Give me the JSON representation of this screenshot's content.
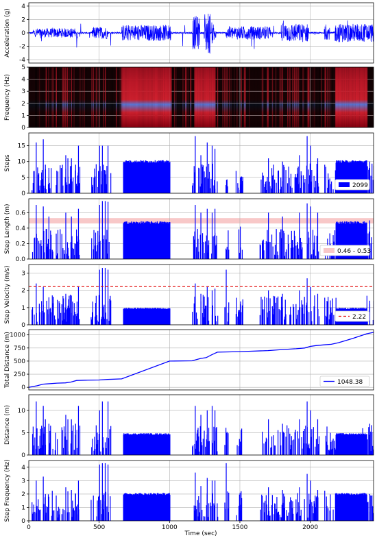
{
  "colors": {
    "series": "#0000ff",
    "band": "#f8c8c8",
    "reference": "#e00000",
    "spectrogram_bg": "#000000",
    "grid": "#b0b0b0"
  },
  "x_axis": {
    "label": "Time (sec)",
    "xlim": [
      0,
      2450
    ],
    "ticks": [
      0,
      500,
      1000,
      1500,
      2000
    ]
  },
  "chart_data": [
    {
      "id": "acc",
      "type": "line",
      "ylabel": "Acceleration (g)",
      "ylim": [
        -4.5,
        4.5
      ],
      "yticks": [
        -4,
        -2,
        0,
        2,
        4
      ],
      "grid": true,
      "active_segments": [
        [
          30,
          330,
          0.7
        ],
        [
          340,
          345,
          3.8
        ],
        [
          450,
          560,
          0.9
        ],
        [
          660,
          1010,
          1.2
        ],
        [
          1165,
          1215,
          2.5
        ],
        [
          1245,
          1290,
          3.2
        ],
        [
          1300,
          1330,
          1.6
        ],
        [
          1400,
          1720,
          1.0
        ],
        [
          1790,
          1990,
          1.4
        ],
        [
          2100,
          2140,
          1.0
        ],
        [
          2175,
          2450,
          1.4
        ]
      ]
    },
    {
      "id": "spec",
      "type": "heatmap",
      "ylabel": "Frequency (Hz)",
      "ylim": [
        0,
        5
      ],
      "yticks": [
        0,
        1,
        2,
        3,
        4,
        5
      ],
      "grid": true,
      "bright_segments": [
        [
          660,
          1010
        ],
        [
          1175,
          1320
        ],
        [
          2175,
          2400
        ]
      ]
    },
    {
      "id": "steps",
      "type": "bar",
      "ylabel": "Steps",
      "ylim": [
        0,
        19
      ],
      "yticks": [
        0,
        5,
        10,
        15
      ],
      "grid": true,
      "legend": "2099",
      "legend_style": "patch",
      "plateaus": [
        {
          "x0": 670,
          "x1": 1000,
          "y": 10
        },
        {
          "x0": 2180,
          "x1": 2400,
          "y": 10
        }
      ],
      "peaks": [
        [
          50,
          16
        ],
        [
          100,
          17
        ],
        [
          115,
          9
        ],
        [
          140,
          8
        ],
        [
          260,
          12
        ],
        [
          275,
          11
        ],
        [
          300,
          11
        ],
        [
          330,
          9
        ],
        [
          350,
          15
        ],
        [
          500,
          15
        ],
        [
          520,
          15
        ],
        [
          560,
          15
        ],
        [
          1180,
          18
        ],
        [
          1220,
          12
        ],
        [
          1265,
          16
        ],
        [
          1300,
          15
        ],
        [
          1320,
          14
        ],
        [
          1500,
          5
        ],
        [
          1700,
          11
        ],
        [
          1800,
          10
        ],
        [
          1920,
          12
        ],
        [
          1975,
          18
        ],
        [
          2000,
          15
        ],
        [
          2050,
          11
        ],
        [
          2370,
          9
        ],
        [
          2420,
          10
        ]
      ]
    },
    {
      "id": "steplen",
      "type": "bar",
      "ylabel": "Step Length (m)",
      "ylim": [
        0,
        0.78
      ],
      "yticks": [
        0.0,
        0.2,
        0.4,
        0.6
      ],
      "grid": true,
      "legend": "0.46 - 0.53",
      "band": [
        0.46,
        0.53
      ],
      "plateaus": [
        {
          "x0": 670,
          "x1": 1000,
          "y": 0.47
        },
        {
          "x0": 2180,
          "x1": 2400,
          "y": 0.47
        }
      ],
      "peaks": [
        [
          50,
          0.7
        ],
        [
          100,
          0.68
        ],
        [
          140,
          0.55
        ],
        [
          260,
          0.6
        ],
        [
          300,
          0.55
        ],
        [
          350,
          0.65
        ],
        [
          500,
          0.7
        ],
        [
          520,
          0.75
        ],
        [
          540,
          0.75
        ],
        [
          560,
          0.74
        ],
        [
          1180,
          0.7
        ],
        [
          1220,
          0.6
        ],
        [
          1265,
          0.65
        ],
        [
          1300,
          0.6
        ],
        [
          1320,
          0.65
        ],
        [
          1500,
          0.42
        ],
        [
          1700,
          0.6
        ],
        [
          1800,
          0.55
        ],
        [
          1920,
          0.6
        ],
        [
          1975,
          0.72
        ],
        [
          2000,
          0.68
        ],
        [
          2050,
          0.6
        ],
        [
          2420,
          0.5
        ]
      ]
    },
    {
      "id": "velocity",
      "type": "bar",
      "ylabel": "Step Velocity (m/s)",
      "ylim": [
        0,
        3.5
      ],
      "yticks": [
        0,
        1,
        2,
        3
      ],
      "grid": true,
      "legend": "2.22",
      "reference": 2.22,
      "plateaus": [
        {
          "x0": 670,
          "x1": 1000,
          "y": 0.95
        },
        {
          "x0": 2180,
          "x1": 2400,
          "y": 0.95
        }
      ],
      "peaks": [
        [
          50,
          2.4
        ],
        [
          100,
          2.2
        ],
        [
          140,
          1.6
        ],
        [
          260,
          1.8
        ],
        [
          300,
          1.7
        ],
        [
          350,
          2.2
        ],
        [
          500,
          3.2
        ],
        [
          520,
          3.3
        ],
        [
          540,
          3.3
        ],
        [
          560,
          3.2
        ],
        [
          1180,
          2.4
        ],
        [
          1220,
          1.8
        ],
        [
          1265,
          2.2
        ],
        [
          1300,
          2.0
        ],
        [
          1320,
          2.1
        ],
        [
          1400,
          3.2
        ],
        [
          1500,
          1.2
        ],
        [
          1700,
          2.0
        ],
        [
          1800,
          1.8
        ],
        [
          1920,
          2.0
        ],
        [
          1975,
          2.7
        ],
        [
          2000,
          2.2
        ],
        [
          2050,
          1.8
        ],
        [
          2420,
          1.4
        ]
      ]
    },
    {
      "id": "totaldist",
      "type": "line",
      "ylabel": "Total Distance (m)",
      "ylim": [
        -50,
        1100
      ],
      "yticks": [
        0,
        250,
        500,
        750,
        1000
      ],
      "grid": true,
      "legend": "1048.38",
      "legend_style": "line",
      "x": [
        0,
        60,
        100,
        130,
        200,
        260,
        300,
        340,
        400,
        500,
        560,
        660,
        1000,
        1160,
        1220,
        1260,
        1300,
        1340,
        1500,
        1700,
        1800,
        1900,
        1960,
        2000,
        2040,
        2100,
        2150,
        2200,
        2300,
        2400,
        2450
      ],
      "y": [
        0,
        30,
        60,
        65,
        80,
        85,
        100,
        130,
        135,
        140,
        150,
        160,
        500,
        505,
        550,
        565,
        620,
        670,
        680,
        700,
        720,
        735,
        750,
        780,
        795,
        810,
        820,
        850,
        930,
        1020,
        1048.38
      ]
    },
    {
      "id": "distance",
      "type": "bar",
      "ylabel": "Distance (m)",
      "ylim": [
        0,
        13.5
      ],
      "yticks": [
        0,
        5,
        10
      ],
      "grid": true,
      "plateaus": [
        {
          "x0": 670,
          "x1": 1000,
          "y": 4.7
        },
        {
          "x0": 2180,
          "x1": 2400,
          "y": 4.7
        }
      ],
      "peaks": [
        [
          50,
          12
        ],
        [
          100,
          11
        ],
        [
          115,
          8
        ],
        [
          140,
          7
        ],
        [
          260,
          9
        ],
        [
          275,
          8
        ],
        [
          300,
          8
        ],
        [
          330,
          7
        ],
        [
          350,
          11
        ],
        [
          500,
          10
        ],
        [
          520,
          12
        ],
        [
          560,
          12
        ],
        [
          1180,
          11
        ],
        [
          1220,
          9
        ],
        [
          1265,
          10
        ],
        [
          1300,
          11
        ],
        [
          1320,
          10
        ],
        [
          1500,
          3
        ],
        [
          1700,
          8
        ],
        [
          1800,
          7
        ],
        [
          1920,
          8
        ],
        [
          1975,
          12
        ],
        [
          2000,
          10
        ],
        [
          2050,
          8
        ],
        [
          2370,
          6
        ],
        [
          2420,
          7
        ]
      ]
    },
    {
      "id": "stepfreq",
      "type": "bar",
      "ylabel": "Step Frequency (Hz)",
      "ylim": [
        0,
        4.5
      ],
      "yticks": [
        0,
        1,
        2,
        3,
        4
      ],
      "grid": true,
      "plateaus": [
        {
          "x0": 670,
          "x1": 1000,
          "y": 2.0
        },
        {
          "x0": 2180,
          "x1": 2400,
          "y": 2.0
        }
      ],
      "peaks": [
        [
          50,
          3.0
        ],
        [
          100,
          3.3
        ],
        [
          115,
          2.0
        ],
        [
          140,
          1.8
        ],
        [
          260,
          2.5
        ],
        [
          275,
          2.2
        ],
        [
          300,
          2.3
        ],
        [
          330,
          2.0
        ],
        [
          350,
          3.0
        ],
        [
          500,
          4.2
        ],
        [
          520,
          4.3
        ],
        [
          540,
          4.3
        ],
        [
          560,
          4.2
        ],
        [
          1180,
          3.6
        ],
        [
          1220,
          2.6
        ],
        [
          1265,
          3.2
        ],
        [
          1300,
          3.0
        ],
        [
          1320,
          3.0
        ],
        [
          1400,
          4.3
        ],
        [
          1500,
          1.2
        ],
        [
          1700,
          2.5
        ],
        [
          1800,
          2.3
        ],
        [
          1920,
          2.5
        ],
        [
          1975,
          3.5
        ],
        [
          2000,
          3.0
        ],
        [
          2050,
          2.3
        ],
        [
          2370,
          1.8
        ],
        [
          2420,
          2.0
        ]
      ]
    }
  ]
}
